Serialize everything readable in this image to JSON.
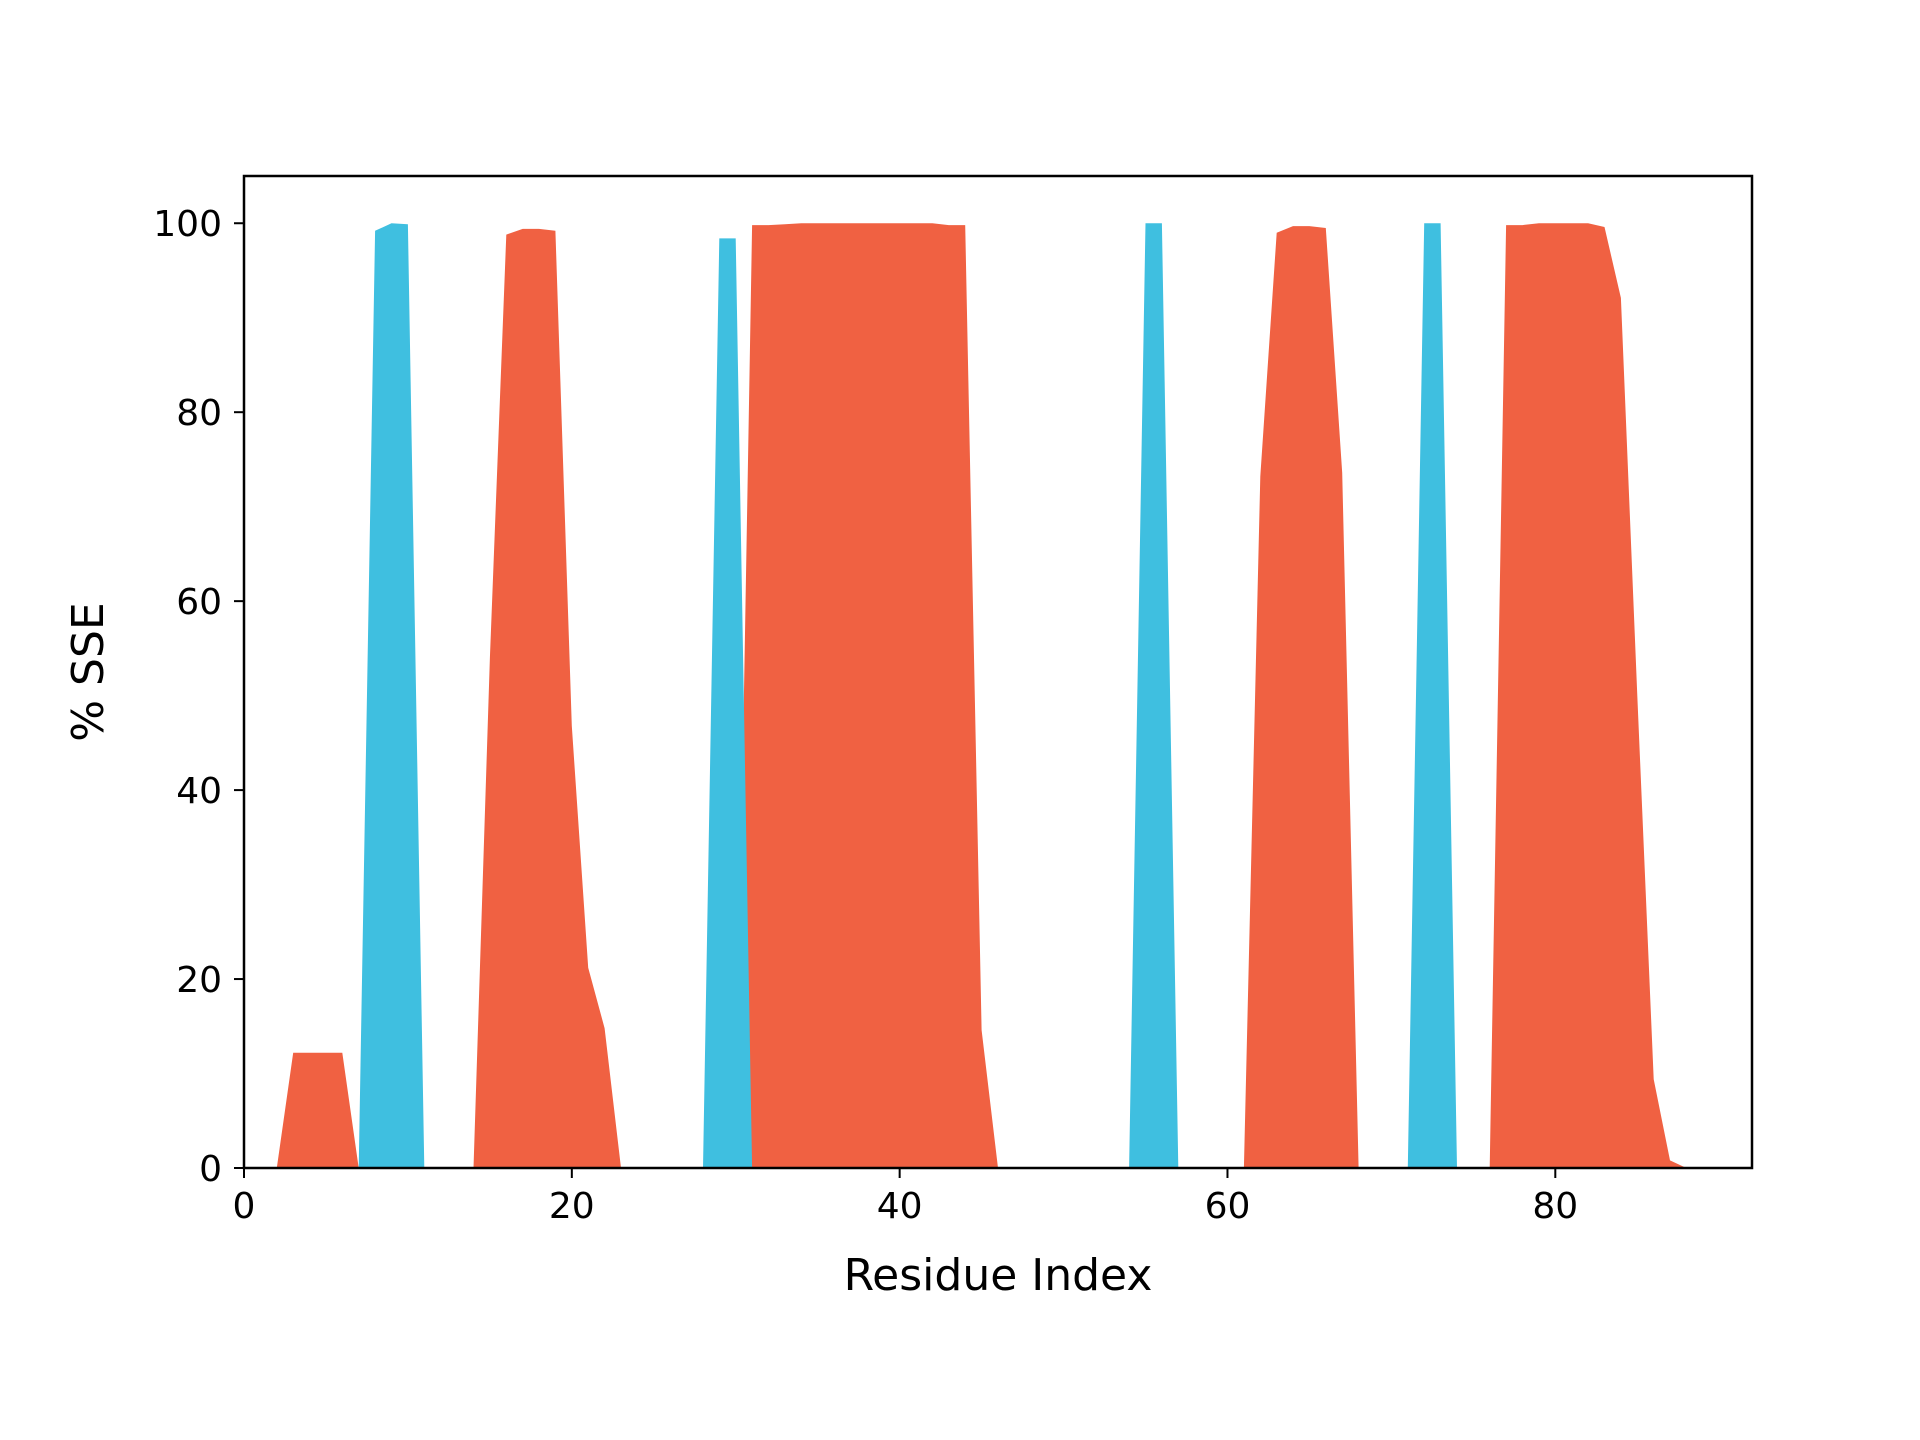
{
  "chart_data": {
    "type": "area",
    "title": "",
    "xlabel": "Residue Index",
    "ylabel": "% SSE",
    "xlim": [
      0,
      92
    ],
    "ylim": [
      0,
      105
    ],
    "xticks": [
      0,
      20,
      40,
      60,
      80
    ],
    "yticks": [
      0,
      20,
      40,
      60,
      80,
      100
    ],
    "grid": false,
    "legend": "none",
    "colors": {
      "helix": "#f06142",
      "strand": "#3fbfe0"
    },
    "series": [
      {
        "color": "#f06142",
        "x": [
          2,
          3,
          4,
          5,
          6,
          7,
          14,
          15,
          16,
          17,
          18,
          19,
          20,
          21,
          22,
          23,
          30,
          31,
          32,
          33,
          34,
          35,
          36,
          37,
          38,
          39,
          40,
          41,
          42,
          43,
          44,
          45,
          46,
          61,
          62,
          63,
          64,
          65,
          66,
          67,
          68,
          76,
          77,
          78,
          79,
          80,
          81,
          82,
          83,
          84,
          85,
          86,
          87,
          88
        ],
        "values": [
          0,
          12.2,
          12.2,
          12.2,
          12.2,
          0,
          0,
          54,
          98.8,
          99.4,
          99.4,
          99.2,
          46.8,
          21.2,
          14.8,
          0,
          0,
          99.8,
          99.8,
          99.9,
          100,
          100,
          100,
          100,
          100,
          100,
          100,
          100,
          100,
          99.8,
          99.8,
          14.6,
          0,
          0,
          73.2,
          99,
          99.7,
          99.7,
          99.5,
          73.6,
          0,
          0,
          99.8,
          99.8,
          100,
          100,
          100,
          100,
          99.6,
          92.1,
          50,
          9.4,
          0.8,
          0
        ]
      },
      {
        "color": "#3fbfe0",
        "x": [
          7,
          8,
          9,
          10,
          11,
          28,
          29,
          30,
          31,
          54,
          55,
          56,
          57,
          71,
          72,
          73,
          74
        ],
        "values": [
          0,
          99.2,
          100,
          99.9,
          0,
          0,
          98.4,
          98.4,
          0,
          0,
          100,
          100,
          0,
          0,
          100,
          100,
          0
        ]
      }
    ]
  }
}
